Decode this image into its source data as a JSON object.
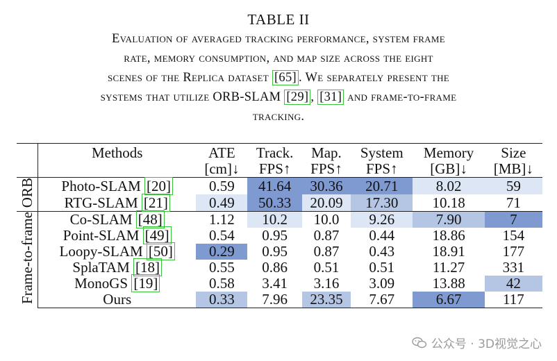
{
  "caption": {
    "title": "TABLE II",
    "line1": "Evaluation of averaged tracking performance, system frame",
    "line2": "rate, memory consumption, and map size across the eight",
    "line3_a": "scenes of the Replica dataset ",
    "ref_65": "[65]",
    "line3_b": ". We separately present the",
    "line4_a": "systems that utilize ORB-SLAM ",
    "ref_29": "[29]",
    "line4_sep": ", ",
    "ref_31": "[31]",
    "line4_b": " and frame-to-frame",
    "line5": "tracking."
  },
  "table": {
    "headers": [
      {
        "top": "Methods",
        "bottom": ""
      },
      {
        "top": "ATE",
        "bottom": "[cm]↓"
      },
      {
        "top": "Track.",
        "bottom": "FPS↑"
      },
      {
        "top": "Map.",
        "bottom": "FPS↑"
      },
      {
        "top": "System",
        "bottom": "FPS↑"
      },
      {
        "top": "Memory",
        "bottom": "[GB]↓"
      },
      {
        "top": "Size",
        "bottom": "[MB]↓"
      }
    ],
    "groups": [
      {
        "label": "ORB",
        "rows": [
          {
            "method": "Photo-SLAM ",
            "ref": "[20]",
            "cells": [
              "0.59",
              "41.64",
              "30.36",
              "20.71",
              "8.02",
              "59"
            ]
          },
          {
            "method": "RTG-SLAM ",
            "ref": "[21]",
            "cells": [
              "0.49",
              "50.33",
              "20.09",
              "17.30",
              "10.18",
              "71"
            ]
          }
        ]
      },
      {
        "label": "Frame-to-frame",
        "rows": [
          {
            "method": "Co-SLAM ",
            "ref": "[48]",
            "cells": [
              "1.12",
              "10.2",
              "10.0",
              "9.26",
              "7.90",
              "7"
            ]
          },
          {
            "method": "Point-SLAM ",
            "ref": "[49]",
            "cells": [
              "0.54",
              "0.95",
              "0.87",
              "0.44",
              "18.86",
              "154"
            ]
          },
          {
            "method": "Loopy-SLAM ",
            "ref": "[50]",
            "cells": [
              "0.29",
              "0.95",
              "0.87",
              "0.43",
              "18.91",
              "177"
            ]
          },
          {
            "method": "SplaTAM ",
            "ref": "[18]",
            "cells": [
              "0.55",
              "0.86",
              "0.51",
              "0.51",
              "11.27",
              "331"
            ]
          },
          {
            "method": "MonoGS ",
            "ref": "[19]",
            "cells": [
              "0.58",
              "3.41",
              "3.16",
              "3.09",
              "13.88",
              "42"
            ]
          },
          {
            "method": "Ours",
            "ref": "",
            "cells": [
              "0.33",
              "7.96",
              "23.35",
              "7.67",
              "6.67",
              "117"
            ]
          }
        ]
      }
    ],
    "highlight_colors": {
      "light": "#dce6f4",
      "medium": "#b4c6e4",
      "dark": "#7f9ad0"
    }
  },
  "watermark": "公众号 · 3D视觉之心"
}
